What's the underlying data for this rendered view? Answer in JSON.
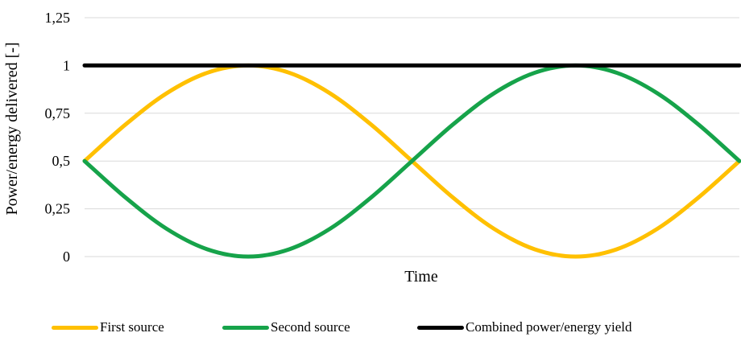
{
  "chart_data": {
    "type": "line",
    "title": "",
    "xlabel": "Time",
    "ylabel": "Power/energy delivered [-]",
    "ylim": [
      0,
      1.25
    ],
    "yticks": [
      "0",
      "0,25",
      "0,5",
      "0,75",
      "1",
      "1,25"
    ],
    "ytick_values": [
      0,
      0.25,
      0.5,
      0.75,
      1,
      1.25
    ],
    "grid": true,
    "legend_position": "bottom",
    "x": [
      0,
      0.125,
      0.25,
      0.375,
      0.5,
      0.625,
      0.75,
      0.875,
      1,
      1.125,
      1.25,
      1.375,
      1.5,
      1.625,
      1.75,
      1.875,
      2
    ],
    "series": [
      {
        "name": "First source",
        "color": "#FFC000",
        "values": [
          0.5,
          0.691,
          0.854,
          0.962,
          1,
          0.962,
          0.854,
          0.691,
          0.5,
          0.309,
          0.146,
          0.038,
          0,
          0.038,
          0.146,
          0.309,
          0.5
        ]
      },
      {
        "name": "Second source",
        "color": "#16A34A",
        "values": [
          0.5,
          0.309,
          0.146,
          0.038,
          0,
          0.038,
          0.146,
          0.309,
          0.5,
          0.691,
          0.854,
          0.962,
          1,
          0.962,
          0.854,
          0.691,
          0.5
        ]
      },
      {
        "name": "Combined power/energy yield",
        "color": "#000000",
        "values": [
          1,
          1,
          1,
          1,
          1,
          1,
          1,
          1,
          1,
          1,
          1,
          1,
          1,
          1,
          1,
          1,
          1
        ]
      }
    ]
  }
}
